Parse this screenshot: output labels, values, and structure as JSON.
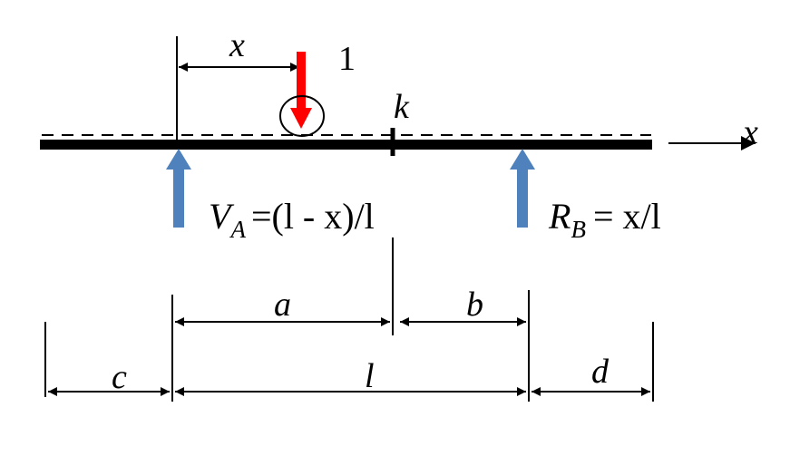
{
  "labels": {
    "x_top": "x",
    "unit_load": "1",
    "section": "k",
    "axis_x": "x",
    "va_sym": "V",
    "va_sub": "A",
    "va_expr": "=(l - x)/l",
    "rb_sym": "R",
    "rb_sub": "B",
    "rb_expr": "= x/l",
    "dim_a": "a",
    "dim_b": "b",
    "dim_c": "c",
    "dim_l": "l",
    "dim_d": "d"
  },
  "colors": {
    "beam": "#000000",
    "load": "#ff0000",
    "reaction": "#4f81bd",
    "lines": "#000000"
  }
}
